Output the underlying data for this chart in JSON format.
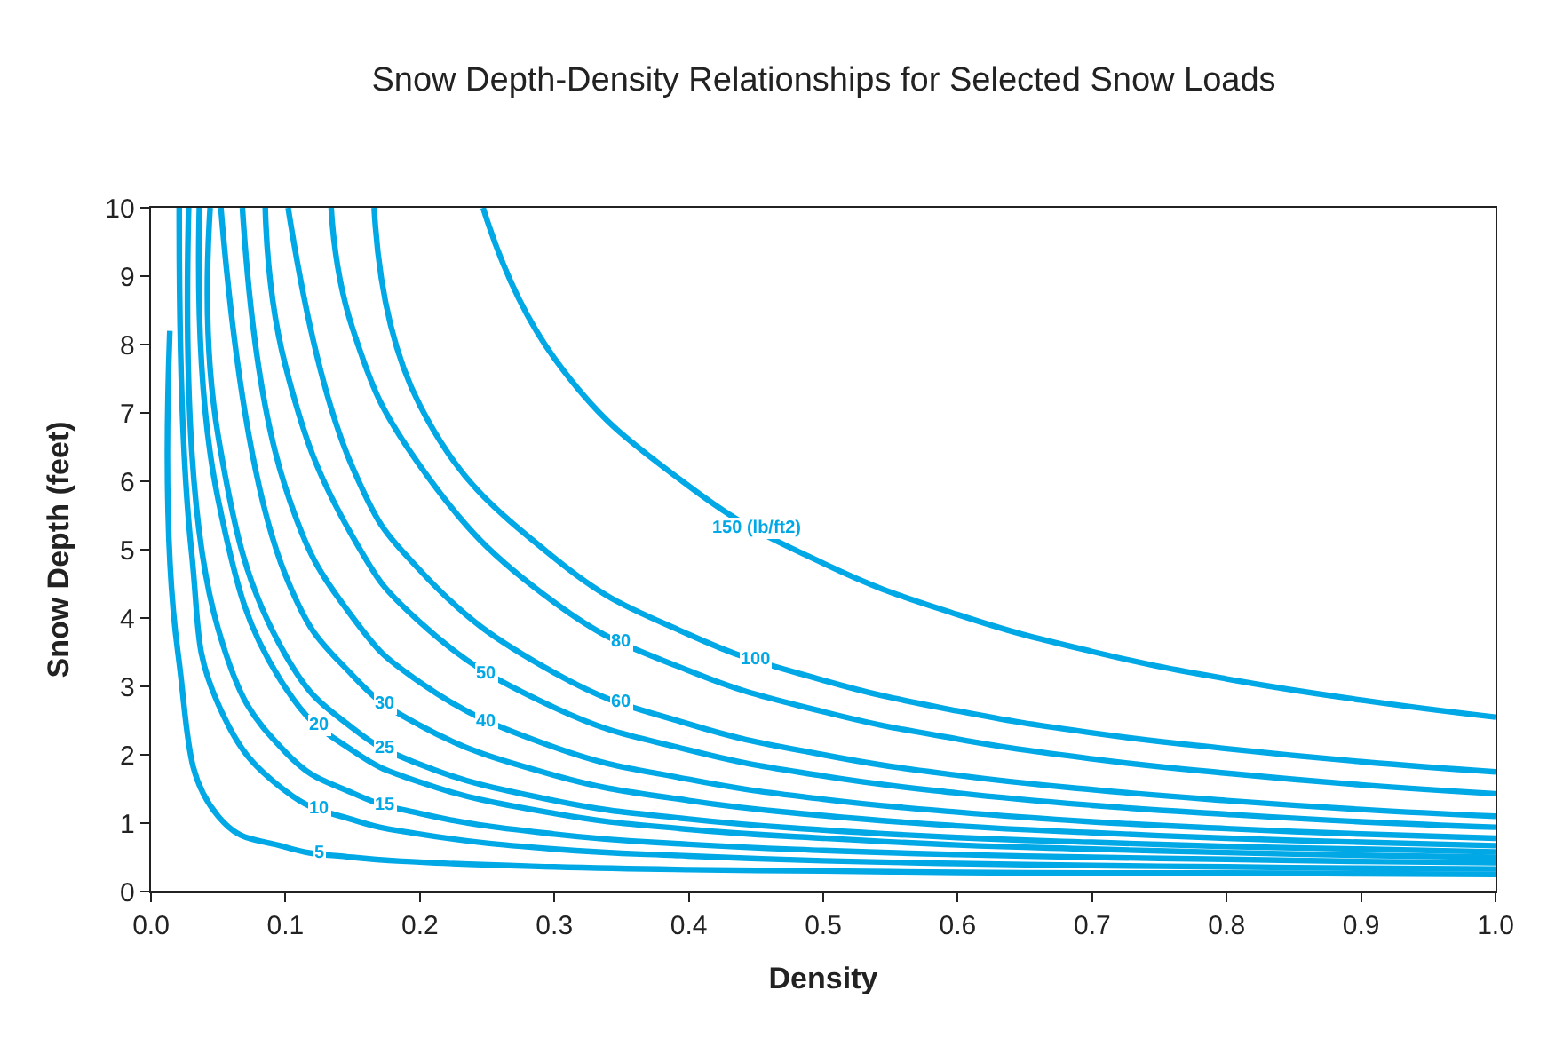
{
  "chart_data": {
    "type": "line",
    "title": "Snow Depth-Density Relationships for Selected Snow Loads",
    "xlabel": "Density",
    "ylabel": "Snow Depth (feet)",
    "xlim": [
      0,
      1
    ],
    "ylim": [
      0,
      10
    ],
    "xticks": [
      {
        "value": 0,
        "label": "0.0"
      },
      {
        "value": 0.1,
        "label": "0.1"
      },
      {
        "value": 0.2,
        "label": "0.2"
      },
      {
        "value": 0.3,
        "label": "0.3"
      },
      {
        "value": 0.4,
        "label": "0.4"
      },
      {
        "value": 0.5,
        "label": "0.5"
      },
      {
        "value": 0.6,
        "label": "0.6"
      },
      {
        "value": 0.7,
        "label": "0.7"
      },
      {
        "value": 0.8,
        "label": "0.8"
      },
      {
        "value": 0.9,
        "label": "0.9"
      },
      {
        "value": 1,
        "label": "1.0"
      }
    ],
    "yticks": [
      0,
      1,
      2,
      3,
      4,
      5,
      6,
      7,
      8,
      9,
      10
    ],
    "marker": "none",
    "line_style": "solid",
    "series": [
      {
        "color": "#00a8e6",
        "x": [
          0.014,
          0.02,
          0.05,
          0.1,
          0.15,
          0.2,
          0.3,
          0.4,
          0.5,
          0.6,
          0.7,
          0.8,
          0.9,
          1.0
        ],
        "values": [
          8.2,
          3.5,
          1.1,
          0.65,
          0.5,
          0.43,
          0.36,
          0.32,
          0.3,
          0.28,
          0.27,
          0.27,
          0.26,
          0.25
        ]
      },
      {
        "color": "#00a8e6",
        "x": [
          0.021,
          0.03,
          0.05,
          0.1,
          0.15,
          0.2,
          0.3,
          0.4,
          0.5,
          0.6,
          0.7,
          0.8,
          0.9,
          1.0
        ],
        "values": [
          10,
          5.0,
          2.74,
          1.47,
          1.05,
          0.84,
          0.62,
          0.52,
          0.45,
          0.41,
          0.38,
          0.36,
          0.34,
          0.33
        ]
      },
      {
        "color": "#00a8e6",
        "x": [
          0.028,
          0.05,
          0.1,
          0.15,
          0.2,
          0.3,
          0.4,
          0.5,
          0.6,
          0.7,
          0.8,
          0.9,
          1.0
        ],
        "values": [
          10,
          3.84,
          2.04,
          1.44,
          1.14,
          0.84,
          0.69,
          0.6,
          0.54,
          0.5,
          0.47,
          0.44,
          0.42
        ]
      },
      {
        "color": "#00a8e6",
        "x": [
          0.036,
          0.05,
          0.1,
          0.15,
          0.2,
          0.3,
          0.4,
          0.5,
          0.6,
          0.7,
          0.8,
          0.9,
          1.0
        ],
        "values": [
          10,
          5.73,
          2.98,
          2.06,
          1.6,
          1.14,
          0.91,
          0.78,
          0.68,
          0.62,
          0.57,
          0.53,
          0.5
        ]
      },
      {
        "color": "#00a8e6",
        "x": [
          0.044,
          0.05,
          0.1,
          0.15,
          0.2,
          0.3,
          0.4,
          0.5,
          0.6,
          0.7,
          0.8,
          0.9,
          1.0
        ],
        "values": [
          10,
          6.66,
          3.46,
          2.39,
          1.86,
          1.33,
          1.06,
          0.9,
          0.79,
          0.72,
          0.66,
          0.62,
          0.58
        ]
      },
      {
        "color": "#00a8e6",
        "x": [
          0.052,
          0.1,
          0.15,
          0.2,
          0.3,
          0.4,
          0.5,
          0.6,
          0.7,
          0.8,
          0.9,
          1.0
        ],
        "values": [
          10,
          4.63,
          3.16,
          2.43,
          1.7,
          1.33,
          1.11,
          0.96,
          0.86,
          0.78,
          0.72,
          0.67
        ]
      },
      {
        "color": "#00a8e6",
        "x": [
          0.068,
          0.1,
          0.15,
          0.2,
          0.3,
          0.4,
          0.5,
          0.6,
          0.7,
          0.8,
          0.9,
          1.0
        ],
        "values": [
          10,
          5.91,
          4.01,
          3.06,
          2.11,
          1.64,
          1.35,
          1.16,
          1.02,
          0.92,
          0.84,
          0.78
        ]
      },
      {
        "color": "#00a8e6",
        "x": [
          0.085,
          0.1,
          0.15,
          0.2,
          0.3,
          0.4,
          0.5,
          0.6,
          0.7,
          0.8,
          0.9,
          1.0
        ],
        "values": [
          10,
          7.69,
          5.19,
          3.94,
          2.69,
          2.07,
          1.69,
          1.44,
          1.26,
          1.13,
          1.02,
          0.94
        ]
      },
      {
        "color": "#00a8e6",
        "x": [
          0.102,
          0.15,
          0.2,
          0.3,
          0.4,
          0.5,
          0.6,
          0.7,
          0.8,
          0.9,
          1.0
        ],
        "values": [
          10,
          6.2,
          4.7,
          3.2,
          2.45,
          2.0,
          1.7,
          1.49,
          1.33,
          1.2,
          1.1
        ]
      },
      {
        "color": "#00a8e6",
        "x": [
          0.134,
          0.15,
          0.2,
          0.3,
          0.4,
          0.5,
          0.6,
          0.7,
          0.8,
          0.9,
          1.0
        ],
        "values": [
          10,
          8.23,
          6.23,
          4.23,
          3.23,
          2.63,
          2.23,
          1.94,
          1.73,
          1.56,
          1.43
        ]
      },
      {
        "color": "#00a8e6",
        "x": [
          0.166,
          0.2,
          0.3,
          0.4,
          0.5,
          0.6,
          0.7,
          0.8,
          0.9,
          1.0
        ],
        "values": [
          10,
          7.11,
          4.88,
          3.76,
          3.09,
          2.64,
          2.32,
          2.09,
          1.9,
          1.75
        ]
      },
      {
        "color": "#00a8e6",
        "x": [
          0.247,
          0.3,
          0.4,
          0.5,
          0.6,
          0.7,
          0.8,
          0.9,
          1.0
        ],
        "values": [
          10,
          7.8,
          5.93,
          4.8,
          4.05,
          3.51,
          3.11,
          2.8,
          2.55
        ]
      }
    ],
    "annotations": [
      {
        "text": "5",
        "x": 0.125,
        "y": 0.56
      },
      {
        "text": "10",
        "x": 0.125,
        "y": 1.22
      },
      {
        "text": "15",
        "x": 0.175,
        "y": 1.27
      },
      {
        "text": "20",
        "x": 0.125,
        "y": 2.43
      },
      {
        "text": "25",
        "x": 0.175,
        "y": 2.09
      },
      {
        "text": "30",
        "x": 0.175,
        "y": 2.74
      },
      {
        "text": "40",
        "x": 0.25,
        "y": 2.49
      },
      {
        "text": "50",
        "x": 0.25,
        "y": 3.19
      },
      {
        "text": "60",
        "x": 0.35,
        "y": 2.77
      },
      {
        "text": "80",
        "x": 0.35,
        "y": 3.66
      },
      {
        "text": "100",
        "x": 0.45,
        "y": 3.39
      },
      {
        "text": "150 (lb/ft2)",
        "x": 0.45,
        "y": 5.3
      }
    ]
  }
}
